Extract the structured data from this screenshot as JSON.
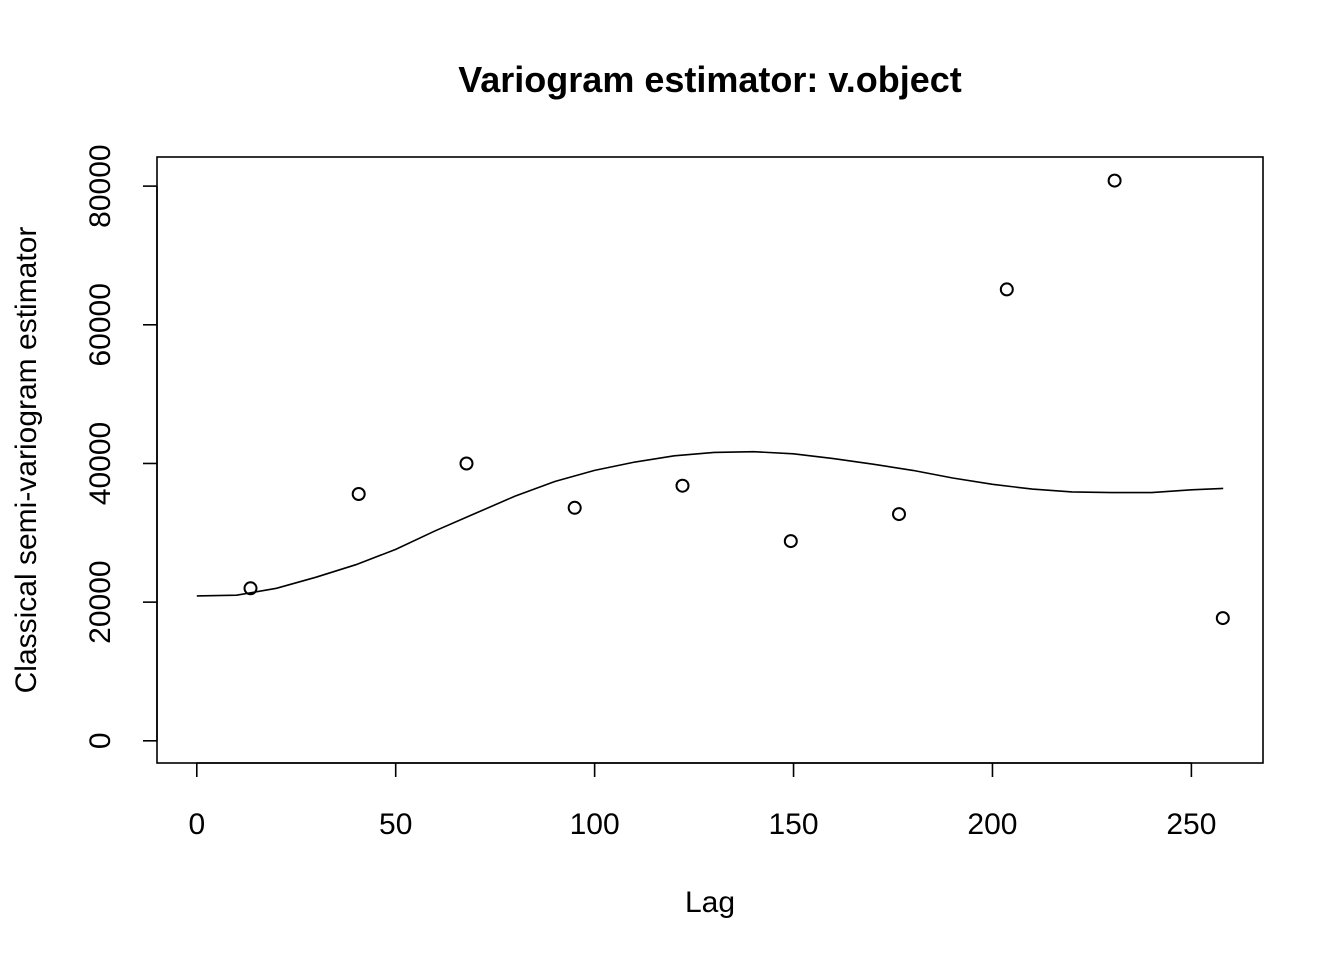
{
  "chart_data": {
    "type": "scatter",
    "title": "Variogram estimator: v.object",
    "xlabel": "Lag",
    "ylabel": "Classical semi-variogram estimator",
    "xlim": [
      -10,
      268
    ],
    "ylim": [
      -3200,
      84200
    ],
    "x_ticks": [
      0,
      50,
      100,
      150,
      200,
      250
    ],
    "x_tick_labels": [
      "0",
      "50",
      "100",
      "150",
      "200",
      "250"
    ],
    "y_ticks": [
      0,
      20000,
      40000,
      60000,
      80000
    ],
    "y_tick_labels": [
      "0",
      "20000",
      "40000",
      "60000",
      "80000"
    ],
    "grid": false,
    "legend": "none",
    "series": [
      {
        "kind": "points",
        "marker": "open-circle",
        "x": [
          13.5,
          40.7,
          67.8,
          95.0,
          122.1,
          149.3,
          176.5,
          203.6,
          230.7,
          257.9
        ],
        "y": [
          22000,
          35600,
          40000,
          33600,
          36800,
          28800,
          32700,
          65100,
          80800,
          17700
        ]
      },
      {
        "kind": "line",
        "x": [
          0,
          10,
          20,
          30,
          40,
          50,
          60,
          70,
          80,
          90,
          100,
          110,
          120,
          130,
          140,
          150,
          160,
          170,
          180,
          190,
          200,
          210,
          220,
          230,
          240,
          250,
          258
        ],
        "y": [
          20900,
          21000,
          22000,
          23600,
          25400,
          27600,
          30300,
          32800,
          35300,
          37400,
          39000,
          40200,
          41100,
          41600,
          41700,
          41400,
          40700,
          39900,
          39000,
          37900,
          37000,
          36300,
          35900,
          35800,
          35800,
          36200,
          36400
        ]
      }
    ]
  }
}
